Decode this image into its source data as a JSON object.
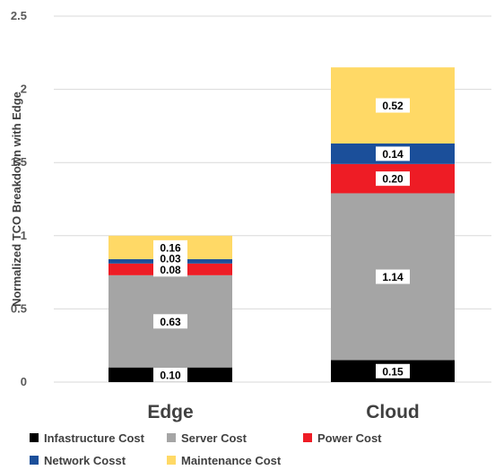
{
  "chart_data": {
    "type": "bar",
    "stacked": true,
    "categories": [
      "Edge",
      "Cloud"
    ],
    "ylabel": "Normalized TCO Breakdown with Edge",
    "xlabel": "",
    "ylim": [
      0,
      2.5
    ],
    "yticks": [
      "0",
      "0.5",
      "1",
      "1.5",
      "2",
      "2.5"
    ],
    "grid": true,
    "legend_position": "bottom",
    "series": [
      {
        "name": "Infastructure Cost",
        "color": "#000000",
        "values": [
          0.1,
          0.15
        ],
        "labels": [
          "0.10",
          "0.15"
        ]
      },
      {
        "name": "Server Cost",
        "color": "#a5a5a5",
        "values": [
          0.63,
          1.14
        ],
        "labels": [
          "0.63",
          "1.14"
        ]
      },
      {
        "name": "Power Cost",
        "color": "#ee1c25",
        "values": [
          0.08,
          0.2
        ],
        "labels": [
          "0.08",
          "0.20"
        ]
      },
      {
        "name": "Network Cosst",
        "color": "#1b4f9a",
        "values": [
          0.03,
          0.14
        ],
        "labels": [
          "0.03",
          "0.14"
        ]
      },
      {
        "name": "Maintenance Cost",
        "color": "#ffd966",
        "values": [
          0.16,
          0.52
        ],
        "labels": [
          "0.16",
          "0.52"
        ]
      }
    ]
  }
}
